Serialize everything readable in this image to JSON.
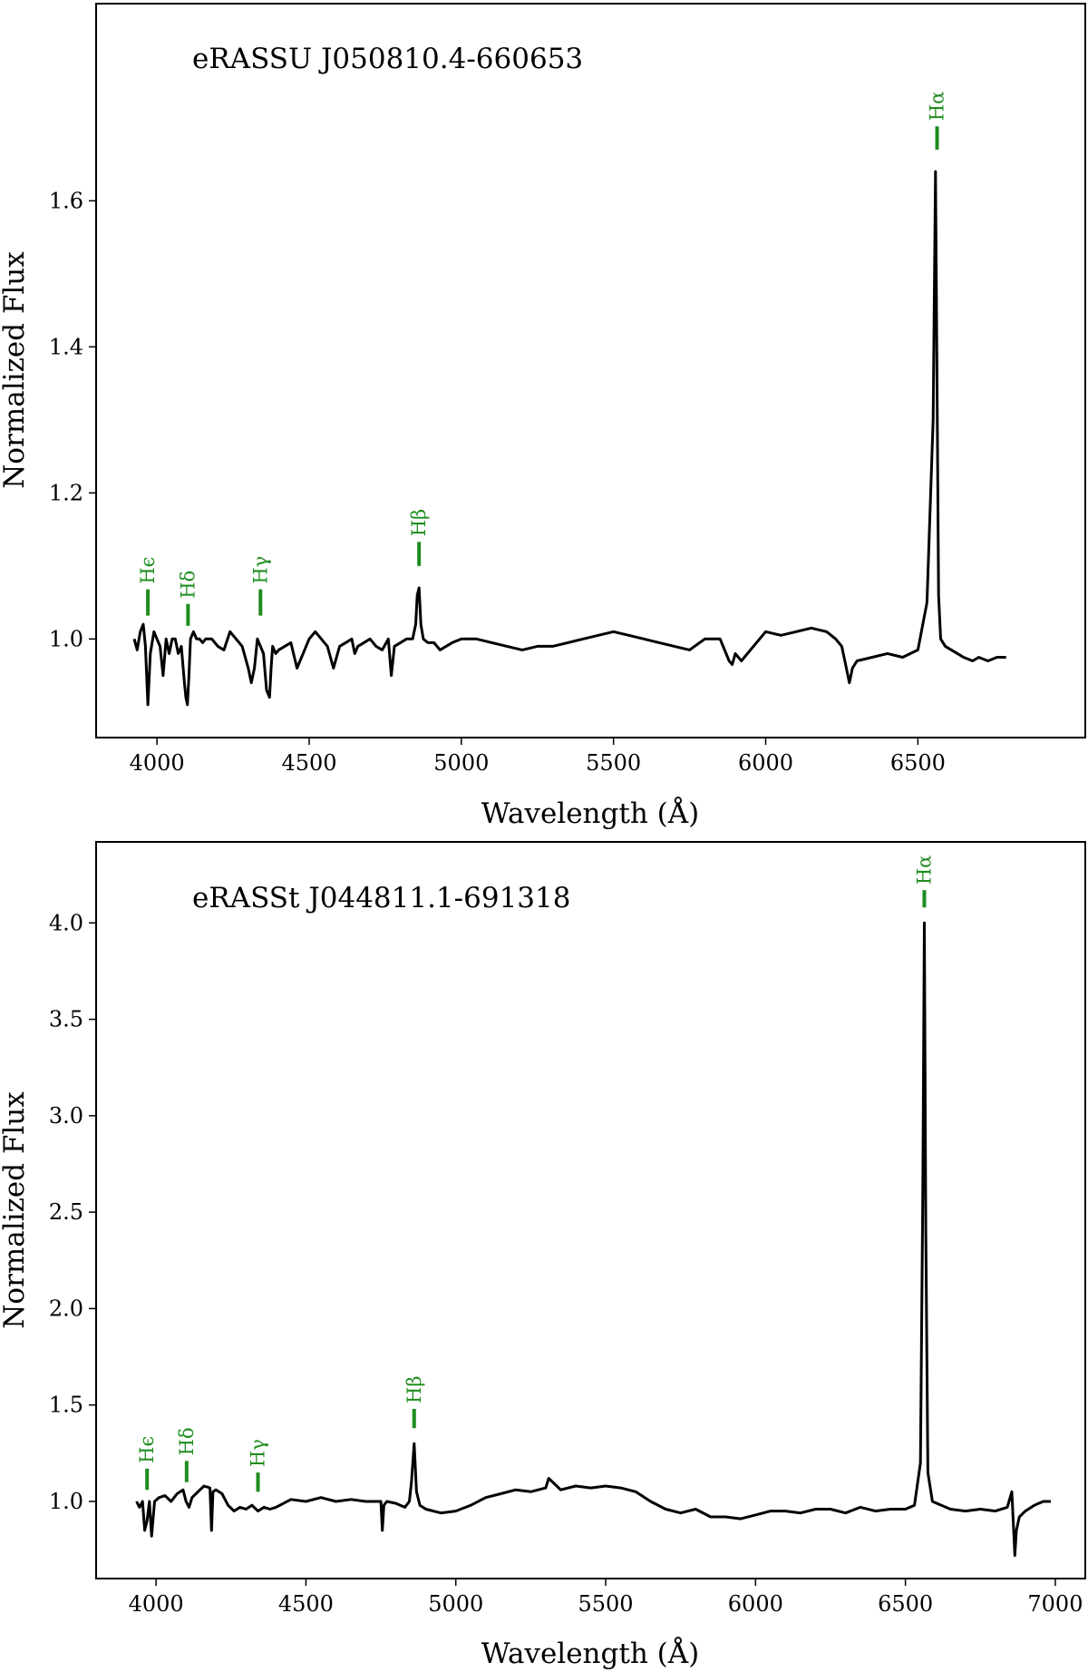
{
  "colors": {
    "spectrum": "#000000",
    "line_marker": "#1e8c1e",
    "frame": "#000000"
  },
  "chart_data": [
    {
      "type": "line",
      "title": "eRASSU J050810.4-660653",
      "xlabel": "Wavelength (Å)",
      "ylabel": "Normalized Flux",
      "xlim": [
        3800,
        7050
      ],
      "ylim": [
        0.865,
        1.87
      ],
      "xticks": [
        4000,
        4500,
        5000,
        5500,
        6000,
        6500
      ],
      "yticks": [
        1.0,
        1.2,
        1.4,
        1.6
      ],
      "ytick_labels": [
        "1.0",
        "1.2",
        "1.4",
        "1.6"
      ],
      "grid": false,
      "series": [
        {
          "x": [
            3925,
            3935,
            3945,
            3955,
            3962,
            3970,
            3978,
            3990,
            4000,
            4010,
            4020,
            4030,
            4040,
            4050,
            4060,
            4070,
            4080,
            4090,
            4095,
            4100,
            4105,
            4110,
            4120,
            4130,
            4140,
            4150,
            4160,
            4180,
            4200,
            4220,
            4240,
            4260,
            4280,
            4300,
            4310,
            4320,
            4330,
            4335,
            4340,
            4350,
            4360,
            4370,
            4375,
            4380,
            4390,
            4400,
            4420,
            4440,
            4460,
            4470,
            4480,
            4490,
            4500,
            4520,
            4540,
            4560,
            4580,
            4600,
            4620,
            4640,
            4650,
            4660,
            4680,
            4700,
            4720,
            4740,
            4760,
            4770,
            4780,
            4800,
            4820,
            4840,
            4850,
            4855,
            4861,
            4867,
            4875,
            4890,
            4910,
            4930,
            4950,
            4970,
            5000,
            5050,
            5100,
            5150,
            5200,
            5250,
            5300,
            5350,
            5400,
            5450,
            5500,
            5550,
            5600,
            5650,
            5700,
            5750,
            5800,
            5850,
            5880,
            5890,
            5900,
            5920,
            5950,
            5980,
            6000,
            6050,
            6100,
            6150,
            6200,
            6230,
            6250,
            6265,
            6275,
            6285,
            6300,
            6350,
            6400,
            6450,
            6500,
            6530,
            6550,
            6558,
            6563,
            6568,
            6575,
            6590,
            6610,
            6630,
            6650,
            6680,
            6700,
            6730,
            6760,
            6790
          ],
          "y": [
            1.0,
            0.985,
            1.01,
            1.02,
            0.99,
            0.91,
            0.98,
            1.01,
            1.0,
            0.99,
            0.95,
            1.0,
            0.98,
            1.0,
            1.0,
            0.98,
            0.99,
            0.94,
            0.92,
            0.91,
            0.95,
            1.0,
            1.01,
            1.0,
            1.0,
            0.995,
            1.0,
            1.0,
            0.99,
            0.985,
            1.01,
            1.0,
            0.99,
            0.96,
            0.94,
            0.96,
            1.0,
            0.995,
            0.99,
            0.98,
            0.93,
            0.92,
            0.96,
            0.99,
            0.98,
            0.985,
            0.99,
            0.995,
            0.96,
            0.97,
            0.98,
            0.99,
            1.0,
            1.01,
            1.0,
            0.99,
            0.96,
            0.99,
            0.995,
            1.0,
            0.98,
            0.99,
            0.995,
            1.0,
            0.99,
            0.985,
            1.0,
            0.95,
            0.99,
            0.995,
            1.0,
            1.0,
            1.02,
            1.06,
            1.07,
            1.02,
            1.0,
            0.995,
            0.995,
            0.985,
            0.99,
            0.995,
            1.0,
            1.0,
            0.995,
            0.99,
            0.985,
            0.99,
            0.99,
            0.995,
            1.0,
            1.005,
            1.01,
            1.005,
            1.0,
            0.995,
            0.99,
            0.985,
            1.0,
            1.0,
            0.97,
            0.965,
            0.98,
            0.97,
            0.985,
            1.0,
            1.01,
            1.005,
            1.01,
            1.015,
            1.01,
            1.0,
            0.99,
            0.96,
            0.94,
            0.96,
            0.97,
            0.975,
            0.98,
            0.975,
            0.985,
            1.05,
            1.3,
            1.64,
            1.35,
            1.06,
            1.0,
            0.99,
            0.985,
            0.98,
            0.975,
            0.97,
            0.975,
            0.97,
            0.975,
            0.975
          ]
        }
      ],
      "line_markers": [
        {
          "label": "Hϵ",
          "wavelength": 3970,
          "flux_bottom": 1.032,
          "flux_top": 1.068
        },
        {
          "label": "Hδ",
          "wavelength": 4102,
          "flux_bottom": 1.018,
          "flux_top": 1.048
        },
        {
          "label": "Hγ",
          "wavelength": 4340,
          "flux_bottom": 1.032,
          "flux_top": 1.068
        },
        {
          "label": "Hβ",
          "wavelength": 4861,
          "flux_bottom": 1.1,
          "flux_top": 1.133
        },
        {
          "label": "Hα",
          "wavelength": 6563,
          "flux_bottom": 1.67,
          "flux_top": 1.702
        }
      ]
    },
    {
      "type": "line",
      "title": "eRASSt J044811.1-691318",
      "xlabel": "Wavelength (Å)",
      "ylabel": "Normalized Flux",
      "xlim": [
        3800,
        7100
      ],
      "ylim": [
        0.6,
        4.42
      ],
      "xticks": [
        4000,
        4500,
        5000,
        5500,
        6000,
        6500,
        7000
      ],
      "yticks": [
        1.0,
        1.5,
        2.0,
        2.5,
        3.0,
        3.5,
        4.0
      ],
      "ytick_labels": [
        "1.0",
        "1.5",
        "2.0",
        "2.5",
        "3.0",
        "3.5",
        "4.0"
      ],
      "grid": false,
      "series": [
        {
          "x": [
            3935,
            3945,
            3955,
            3962,
            3970,
            3978,
            3985,
            3995,
            4010,
            4030,
            4050,
            4070,
            4090,
            4100,
            4110,
            4120,
            4140,
            4160,
            4180,
            4185,
            4190,
            4200,
            4220,
            4240,
            4260,
            4280,
            4300,
            4320,
            4340,
            4360,
            4380,
            4400,
            4450,
            4500,
            4550,
            4600,
            4650,
            4700,
            4750,
            4755,
            4760,
            4770,
            4800,
            4830,
            4845,
            4852,
            4861,
            4869,
            4880,
            4900,
            4950,
            5000,
            5050,
            5100,
            5150,
            5200,
            5250,
            5300,
            5310,
            5350,
            5400,
            5450,
            5500,
            5550,
            5600,
            5650,
            5700,
            5750,
            5800,
            5850,
            5900,
            5950,
            6000,
            6050,
            6100,
            6150,
            6200,
            6250,
            6300,
            6350,
            6400,
            6450,
            6500,
            6530,
            6550,
            6558,
            6563,
            6568,
            6575,
            6590,
            6620,
            6650,
            6700,
            6750,
            6800,
            6840,
            6855,
            6865,
            6870,
            6880,
            6900,
            6930,
            6960,
            6985
          ],
          "y": [
            1.0,
            0.97,
            1.0,
            0.85,
            0.9,
            1.0,
            0.82,
            1.0,
            1.02,
            1.03,
            1.0,
            1.04,
            1.06,
            1.0,
            0.97,
            1.02,
            1.05,
            1.08,
            1.07,
            0.85,
            1.05,
            1.06,
            1.04,
            0.98,
            0.95,
            0.97,
            0.96,
            0.98,
            0.95,
            0.97,
            0.96,
            0.97,
            1.01,
            1.0,
            1.02,
            1.0,
            1.01,
            1.0,
            1.0,
            0.85,
            0.98,
            1.0,
            0.99,
            0.97,
            1.0,
            1.1,
            1.3,
            1.05,
            0.98,
            0.96,
            0.94,
            0.95,
            0.98,
            1.02,
            1.04,
            1.06,
            1.05,
            1.07,
            1.12,
            1.06,
            1.08,
            1.07,
            1.08,
            1.07,
            1.05,
            1.0,
            0.96,
            0.94,
            0.96,
            0.92,
            0.92,
            0.91,
            0.93,
            0.95,
            0.95,
            0.94,
            0.96,
            0.96,
            0.94,
            0.97,
            0.95,
            0.96,
            0.96,
            0.98,
            1.2,
            2.6,
            4.0,
            2.4,
            1.15,
            1.0,
            0.98,
            0.96,
            0.95,
            0.96,
            0.95,
            0.97,
            1.05,
            0.72,
            0.85,
            0.92,
            0.95,
            0.98,
            1.0,
            1.0
          ]
        }
      ],
      "line_markers": [
        {
          "label": "Hϵ",
          "wavelength": 3970,
          "flux_bottom": 1.06,
          "flux_top": 1.17
        },
        {
          "label": "Hδ",
          "wavelength": 4102,
          "flux_bottom": 1.1,
          "flux_top": 1.21
        },
        {
          "label": "Hγ",
          "wavelength": 4340,
          "flux_bottom": 1.05,
          "flux_top": 1.15
        },
        {
          "label": "Hβ",
          "wavelength": 4861,
          "flux_bottom": 1.38,
          "flux_top": 1.48
        },
        {
          "label": "Hα",
          "wavelength": 6563,
          "flux_bottom": 4.08,
          "flux_top": 4.17
        }
      ]
    }
  ]
}
